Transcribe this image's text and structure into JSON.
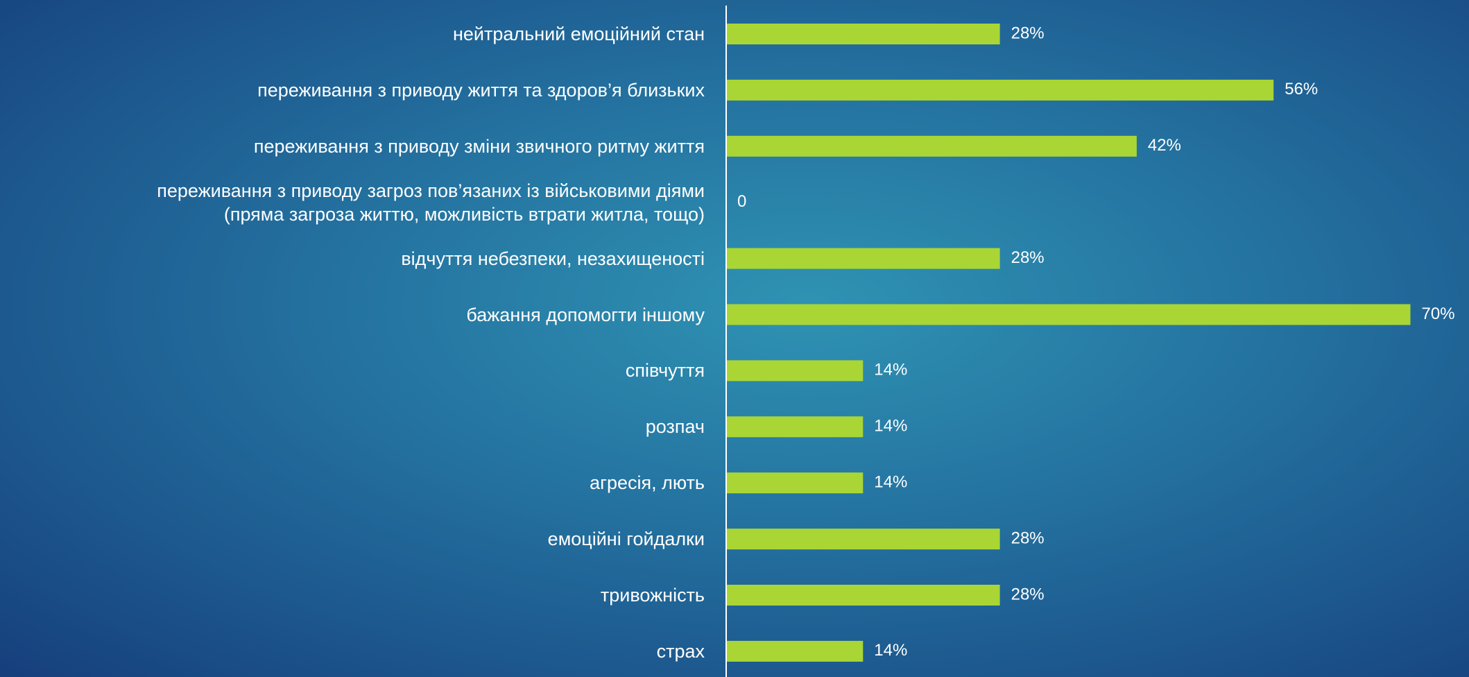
{
  "chart_data": {
    "type": "barh",
    "categories": [
      "нейтральний емоційний стан",
      "переживання з приводу життя та здоров’я близьких",
      "переживання з приводу зміни звичного ритму життя",
      "переживання з приводу загроз пов’язаних із військовими діями\n(пряма загроза життю, можливість втрати житла, тощо)",
      "відчуття небезпеки, незахищеності",
      "бажання допомогти іншому",
      "співчуття",
      "розпач",
      "агресія, лють",
      "емоційні гойдалки",
      "тривожність",
      "страх"
    ],
    "values": [
      28,
      56,
      42,
      0,
      28,
      70,
      14,
      14,
      14,
      28,
      28,
      14
    ],
    "value_labels": [
      "28%",
      "56%",
      "42%",
      "0",
      "28%",
      "70%",
      "14%",
      "14%",
      "14%",
      "28%",
      "28%",
      "14%"
    ],
    "color": "#a9d634",
    "xlim": [
      0,
      75
    ]
  }
}
